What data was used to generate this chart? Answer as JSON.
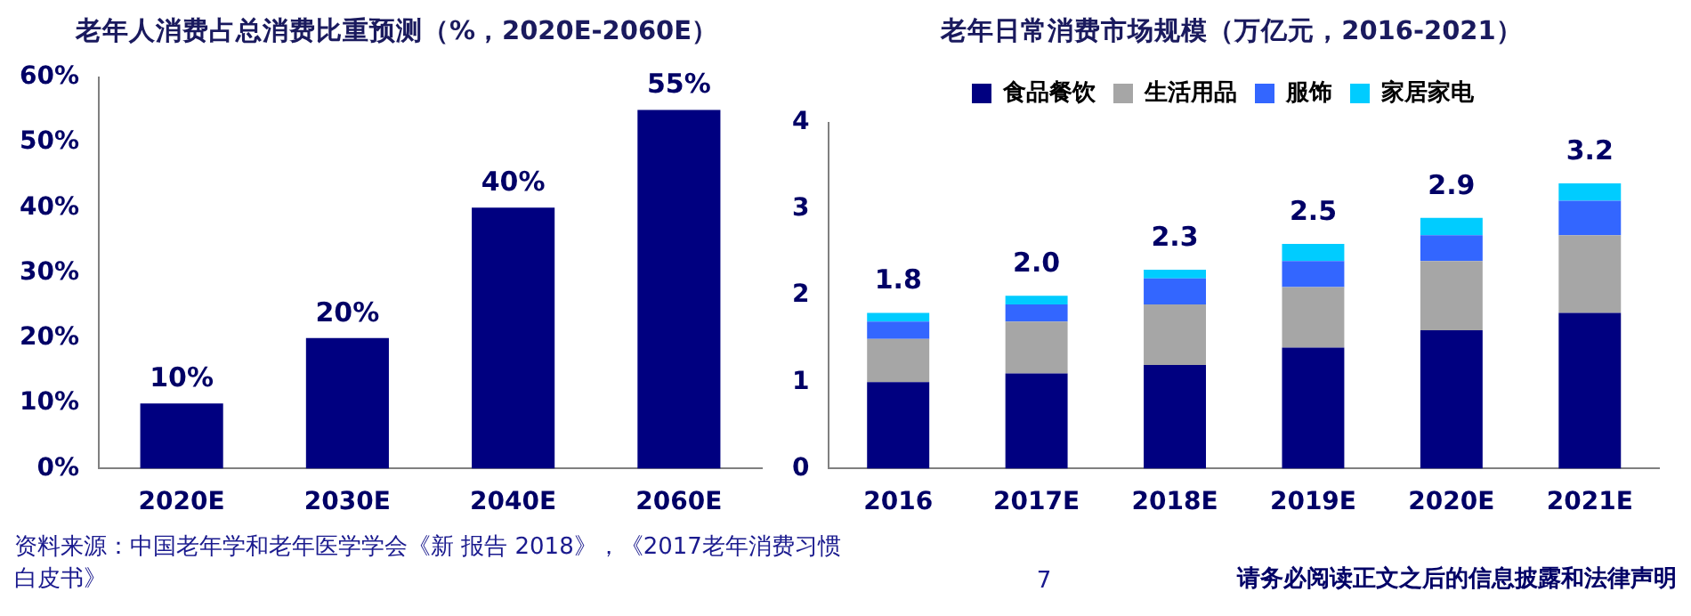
{
  "chart_data": [
    {
      "type": "bar",
      "title": "老年人消费占总消费比重预测（%，2020E-2060E）",
      "categories": [
        "2020E",
        "2030E",
        "2040E",
        "2060E"
      ],
      "values": [
        10,
        20,
        40,
        55
      ],
      "color": "#000080",
      "value_labels": [
        "10%",
        "20%",
        "40%",
        "55%"
      ],
      "ylim": [
        0,
        60
      ],
      "yticks": [
        {
          "value": 0,
          "label": "0%"
        },
        {
          "value": 10,
          "label": "10%"
        },
        {
          "value": 20,
          "label": "20%"
        },
        {
          "value": 30,
          "label": "30%"
        },
        {
          "value": 40,
          "label": "40%"
        },
        {
          "value": 50,
          "label": "50%"
        },
        {
          "value": 60,
          "label": "60%"
        }
      ],
      "grid": false,
      "legend": false,
      "annotations": [
        "资料来源：中国老年学和老年医学学会《新 报告 2018》，《2017老年消费习惯白皮书》",
        "7"
      ]
    },
    {
      "type": "bar",
      "title": "老年日常消费市场规模（万亿元，2016-2021）",
      "categories": [
        "2016",
        "2017E",
        "2018E",
        "2019E",
        "2020E",
        "2021E"
      ],
      "stacked": true,
      "series": [
        {
          "name": "食品餐饮",
          "color": "#000080",
          "values": [
            1.0,
            1.1,
            1.2,
            1.4,
            1.6,
            1.8
          ]
        },
        {
          "name": "生活用品",
          "color": "#a6a6a6",
          "values": [
            0.5,
            0.6,
            0.7,
            0.7,
            0.8,
            0.9
          ]
        },
        {
          "name": "服饰",
          "color": "#3366ff",
          "values": [
            0.2,
            0.2,
            0.3,
            0.3,
            0.3,
            0.4
          ]
        },
        {
          "name": "家居家电",
          "color": "#00ccff",
          "values": [
            0.1,
            0.1,
            0.1,
            0.2,
            0.2,
            0.2
          ]
        }
      ],
      "totals": [
        "1.8",
        "2.0",
        "2.3",
        "2.5",
        "2.9",
        "3.2"
      ],
      "ylim": [
        0,
        4
      ],
      "yticks": [
        0,
        1,
        2,
        3,
        4
      ],
      "grid": false,
      "legend": "top",
      "annotations": [
        "请务必阅读正文之后的信息披露和法律声明"
      ]
    }
  ]
}
